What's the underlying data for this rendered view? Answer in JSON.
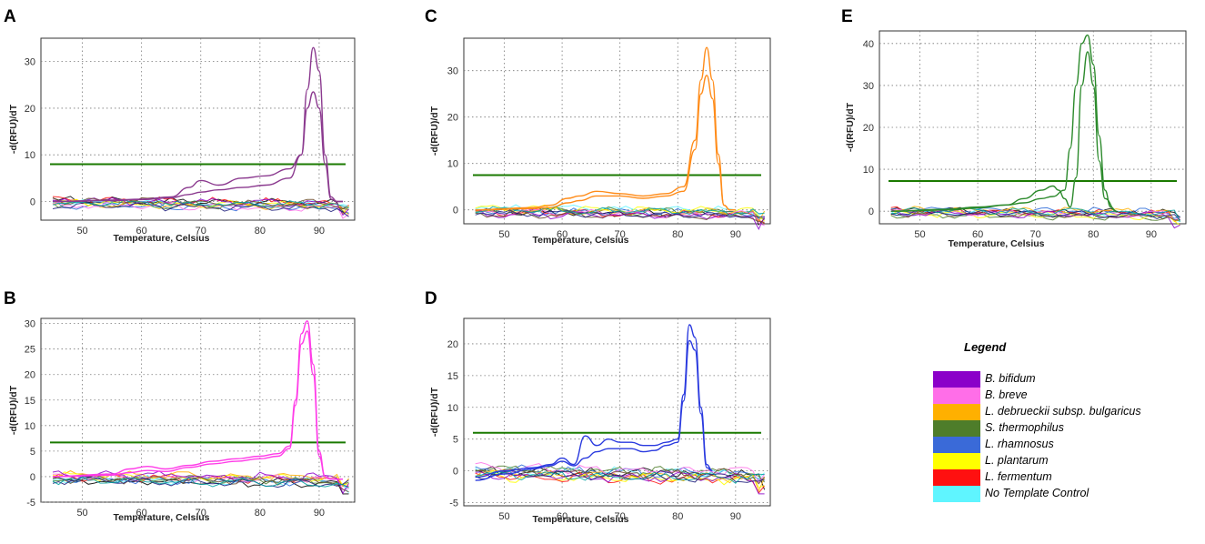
{
  "panels": [
    {
      "id": "A",
      "ylabel": "-d(RFU)/dT",
      "xlabel": "Temperature, Celsius"
    },
    {
      "id": "B",
      "ylabel": "-d(RFU)/dT",
      "xlabel": "Temperature, Celsius"
    },
    {
      "id": "C",
      "ylabel": "-d(RFU)/dT",
      "xlabel": "Temperature, Celsius"
    },
    {
      "id": "D",
      "ylabel": "-d(RFU)/dT",
      "xlabel": "Temperature, Celsius"
    },
    {
      "id": "E",
      "ylabel": "-d(RFU)/dT",
      "xlabel": "Temperature, Celsius"
    }
  ],
  "legend": {
    "title": "Legend",
    "items": [
      {
        "label": "B. bifidum",
        "color": "#8b00c9"
      },
      {
        "label": "B. breve",
        "color": "#ff6ee8"
      },
      {
        "label": "L. debrueckii subsp. bulgaricus",
        "color": "#ffb000"
      },
      {
        "label": "S. thermophilus",
        "color": "#4e7d2a"
      },
      {
        "label": "L. rhamnosus",
        "color": "#3a6ad8"
      },
      {
        "label": "L. plantarum",
        "color": "#ffff00"
      },
      {
        "label": "L. fermentum",
        "color": "#ff1010"
      },
      {
        "label": "No Template Control",
        "color": "#5ff5ff"
      }
    ]
  },
  "chart_data": [
    {
      "type": "line",
      "title": "A",
      "xlabel": "Temperature, Celsius",
      "ylabel": "-d(RFU)/dT",
      "xlim": [
        43,
        96
      ],
      "ylim": [
        -4,
        35
      ],
      "xticks": [
        50,
        60,
        70,
        80,
        90
      ],
      "yticks": [
        0,
        10,
        20,
        30
      ],
      "threshold": 8,
      "threshold_color": "#1a7a00",
      "series": [
        {
          "name": "B. bifidum replicate 1",
          "color": "#8b3a8f",
          "x": [
            45,
            55,
            60,
            65,
            68,
            70,
            73,
            77,
            81,
            85,
            87,
            88,
            89,
            90,
            91,
            92,
            93,
            94
          ],
          "y": [
            0,
            0.3,
            0.5,
            1,
            3,
            4.5,
            3.5,
            5,
            5.5,
            7,
            10,
            24,
            33,
            28,
            10,
            1,
            0,
            0
          ]
        },
        {
          "name": "B. bifidum replicate 2",
          "color": "#8b3a8f",
          "x": [
            45,
            55,
            60,
            65,
            68,
            70,
            73,
            77,
            81,
            85,
            87,
            88,
            89,
            90,
            91,
            92,
            93,
            94
          ],
          "y": [
            0,
            0.2,
            0.4,
            0.8,
            1.5,
            2,
            2.5,
            3,
            3.5,
            5,
            10,
            20,
            23.5,
            20,
            8,
            0.5,
            0,
            0
          ]
        }
      ]
    },
    {
      "type": "line",
      "title": "B",
      "xlabel": "Temperature, Celsius",
      "ylabel": "-d(RFU)/dT",
      "xlim": [
        43,
        96
      ],
      "ylim": [
        -5,
        31
      ],
      "xticks": [
        50,
        60,
        70,
        80,
        90
      ],
      "yticks": [
        -5,
        0,
        5,
        10,
        15,
        20,
        25,
        30
      ],
      "threshold": 6.7,
      "threshold_color": "#1a7a00",
      "series": [
        {
          "name": "B. breve replicate 1",
          "color": "#ff3ce8",
          "x": [
            45,
            55,
            58,
            61,
            64,
            68,
            72,
            76,
            80,
            83,
            85,
            86,
            87,
            88,
            89,
            90,
            91,
            92,
            94
          ],
          "y": [
            0,
            0.5,
            1.5,
            2,
            1.5,
            2.2,
            3,
            3.5,
            4,
            4.5,
            6,
            15,
            28,
            30.5,
            22,
            5,
            0,
            -0.5,
            -0.5
          ]
        },
        {
          "name": "B. breve replicate 2",
          "color": "#ff3ce8",
          "x": [
            45,
            55,
            58,
            61,
            64,
            68,
            72,
            76,
            80,
            83,
            85,
            86,
            87,
            88,
            89,
            90,
            91,
            92,
            94
          ],
          "y": [
            0,
            0.3,
            0.8,
            1.2,
            1,
            1.8,
            2.5,
            3,
            3.5,
            4,
            5.5,
            14,
            26,
            28.5,
            20,
            4,
            0,
            -0.5,
            -0.5
          ]
        }
      ]
    },
    {
      "type": "line",
      "title": "C",
      "xlabel": "Temperature, Celsius",
      "ylabel": "-d(RFU)/dT",
      "xlim": [
        43,
        96
      ],
      "ylim": [
        -3,
        37
      ],
      "xticks": [
        50,
        60,
        70,
        80,
        90
      ],
      "yticks": [
        0,
        10,
        20,
        30
      ],
      "threshold": 7.5,
      "threshold_color": "#1a7a00",
      "series": [
        {
          "name": "L. debrueckii subsp. bulgaricus replicate 1",
          "color": "#ff8c1a",
          "x": [
            45,
            55,
            58,
            61,
            63,
            66,
            70,
            74,
            78,
            81,
            83,
            84,
            85,
            86,
            87,
            88,
            89,
            90
          ],
          "y": [
            0,
            0.5,
            1,
            2.5,
            3,
            4,
            3.5,
            3,
            3.5,
            5,
            15,
            28,
            35,
            28,
            12,
            1,
            0,
            0
          ]
        },
        {
          "name": "L. debrueckii subsp. bulgaricus replicate 2",
          "color": "#ff8c1a",
          "x": [
            45,
            55,
            58,
            61,
            63,
            66,
            70,
            74,
            78,
            81,
            83,
            84,
            85,
            86,
            87,
            88,
            89,
            90
          ],
          "y": [
            0,
            0.3,
            0.5,
            1.5,
            2,
            3,
            3,
            2.5,
            3,
            4,
            13,
            25,
            29,
            24,
            10,
            1,
            0,
            0
          ]
        }
      ]
    },
    {
      "type": "line",
      "title": "D",
      "xlabel": "Temperature, Celsius",
      "ylabel": "-d(RFU)/dT",
      "xlim": [
        43,
        96
      ],
      "ylim": [
        -5.5,
        24
      ],
      "xticks": [
        50,
        60,
        70,
        80,
        90
      ],
      "yticks": [
        -5,
        0,
        5,
        10,
        15,
        20
      ],
      "threshold": 6,
      "threshold_color": "#1a7a00",
      "series": [
        {
          "name": "L. rhamnosus replicate 1",
          "color": "#2a3adf",
          "x": [
            45,
            50,
            55,
            58,
            60,
            62,
            64,
            66,
            68,
            70,
            72,
            74,
            76,
            78,
            80,
            81,
            82,
            83,
            84,
            85,
            86
          ],
          "y": [
            -1,
            0,
            0.5,
            1,
            2,
            1,
            5.5,
            4,
            5,
            4.5,
            4.5,
            4,
            4,
            4.5,
            5,
            12,
            23,
            21,
            10,
            1,
            0
          ]
        },
        {
          "name": "L. rhamnosus replicate 2",
          "color": "#2a3adf",
          "x": [
            45,
            50,
            55,
            58,
            60,
            62,
            64,
            66,
            68,
            70,
            72,
            74,
            76,
            78,
            80,
            81,
            82,
            83,
            84,
            85,
            86
          ],
          "y": [
            -1.5,
            -0.5,
            0.3,
            0.8,
            1.5,
            0.8,
            2,
            3,
            3.5,
            3.5,
            3.5,
            3,
            3.2,
            4,
            4.5,
            11,
            20.5,
            19,
            9,
            0.5,
            0
          ]
        }
      ]
    },
    {
      "type": "line",
      "title": "E",
      "xlabel": "Temperature, Celsius",
      "ylabel": "-d(RFU)/dT",
      "xlim": [
        43,
        96
      ],
      "ylim": [
        -3,
        43
      ],
      "xticks": [
        50,
        60,
        70,
        80,
        90
      ],
      "yticks": [
        0,
        10,
        20,
        30,
        40
      ],
      "threshold": 7.2,
      "threshold_color": "#1a7a00",
      "series": [
        {
          "name": "S. thermophilus replicate 1",
          "color": "#2c8a2c",
          "x": [
            45,
            55,
            60,
            65,
            68,
            71,
            73,
            75,
            76,
            77,
            78,
            79,
            80,
            81,
            82,
            83,
            84
          ],
          "y": [
            0,
            0.5,
            1,
            1.5,
            2,
            3,
            3.5,
            5,
            15,
            30,
            40,
            42,
            35,
            18,
            5,
            1,
            0
          ]
        },
        {
          "name": "S. thermophilus replicate 2",
          "color": "#2c8a2c",
          "x": [
            45,
            55,
            60,
            65,
            68,
            71,
            73,
            74,
            75,
            76,
            77,
            78,
            79,
            80,
            81,
            82,
            84
          ],
          "y": [
            0,
            0.3,
            0.8,
            1.5,
            3,
            5,
            6,
            5,
            3,
            1,
            8,
            30,
            38,
            30,
            12,
            3,
            0
          ]
        }
      ]
    }
  ]
}
